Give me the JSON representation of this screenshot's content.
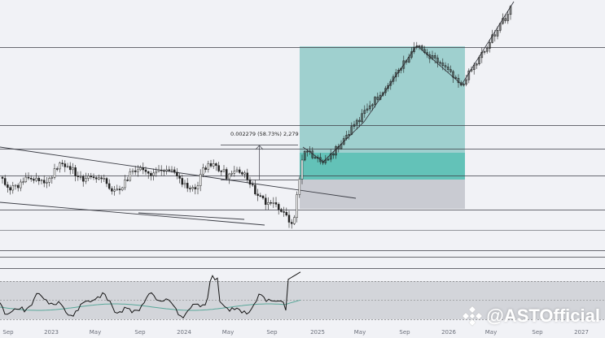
{
  "colors": {
    "background": "#f1f2f6",
    "line": "#3b3d45",
    "target_zone": "#9fd0cf",
    "target_strong": "#63c2b8",
    "stop_zone": "#c9cbd2",
    "rsi_line": "#151515",
    "rsi_ma": "#5aa89a",
    "rsi_band": "#d3d5da"
  },
  "watermark": {
    "text": "@ASTOfficial",
    "icon": "binance-diamond-icon"
  },
  "chart_data": {
    "type": "candlestick",
    "x_tick_labels": [
      "Sep",
      "2023",
      "May",
      "Sep",
      "2024",
      "May",
      "Sep",
      "2025",
      "May",
      "Sep",
      "2026",
      "May",
      "Sep",
      "2027"
    ],
    "measure_label": "0.002279 (58.73%) 2,279",
    "price_scale": "hidden",
    "grid": false,
    "horizontal_levels_relative": [
      0.14,
      0.37,
      0.44,
      0.52,
      0.62,
      0.74,
      0.76
    ],
    "channel": "descending wedge, breakout late 2024",
    "zones": [
      "target (teal)",
      "entry (bright teal)",
      "stop (grey)"
    ],
    "trend_segments": [
      "rise to mid-2025 peak",
      "pullback to early 2026",
      "rise to 2027 high"
    ],
    "panels": [
      "price",
      "RSI"
    ]
  }
}
